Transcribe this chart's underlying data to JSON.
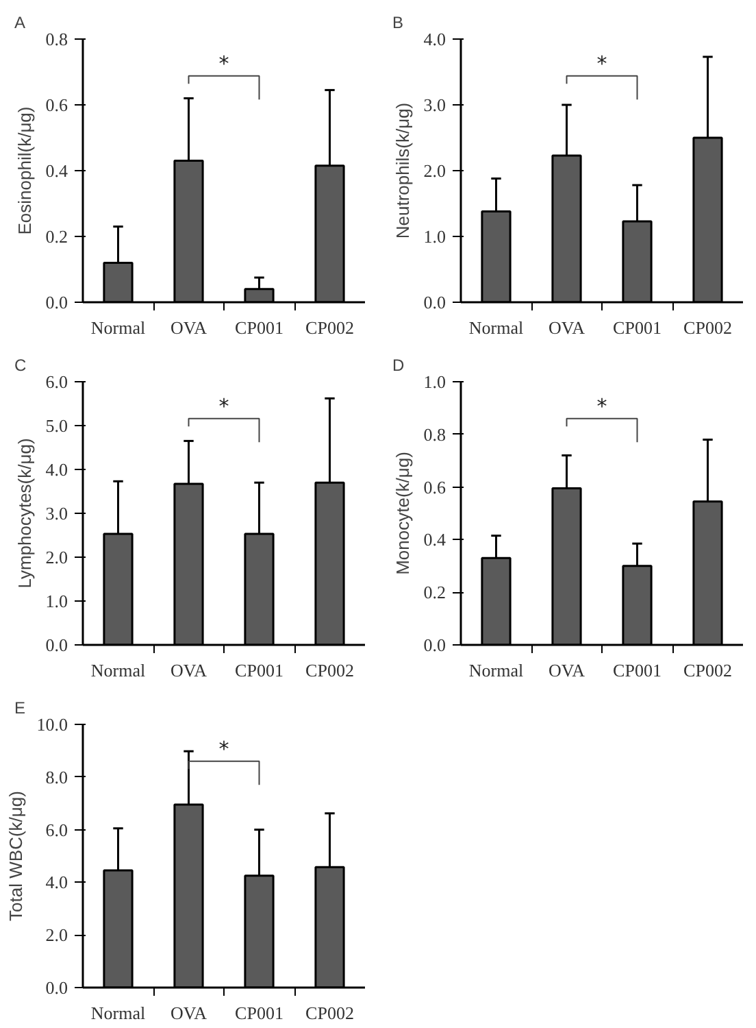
{
  "chart_data": [
    {
      "type": "bar",
      "title": "A",
      "ylabel": "Eosinophil(k/μg)",
      "categories": [
        "Normal",
        "OVA",
        "CP001",
        "CP002"
      ],
      "values": [
        0.12,
        0.43,
        0.04,
        0.415
      ],
      "errors": [
        [
          0.12,
          0.23
        ],
        [
          0.43,
          0.62
        ],
        [
          0.04,
          0.075
        ],
        [
          0.415,
          0.645
        ]
      ],
      "color": "#5a5a5a",
      "ylim": [
        0,
        0.8
      ],
      "yticks": [
        {
          "value": 0,
          "label": "0.0"
        },
        0.2,
        0.4,
        0.6,
        0.8
      ],
      "annotations": [
        "*"
      ],
      "grid": false
    },
    {
      "type": "bar",
      "title": "B",
      "ylabel": "Neutrophils(k/μg)",
      "categories": [
        "Normal",
        "OVA",
        "CP001",
        "CP002"
      ],
      "values": [
        1.38,
        2.23,
        1.23,
        2.5
      ],
      "errors": [
        [
          1.38,
          1.88
        ],
        [
          2.23,
          3.0
        ],
        [
          1.23,
          1.78
        ],
        [
          2.5,
          3.73
        ]
      ],
      "color": "#5a5a5a",
      "ylim": [
        0,
        4
      ],
      "yticks": [
        {
          "value": 0,
          "label": "0.0"
        },
        {
          "value": 1,
          "label": "1.0"
        },
        {
          "value": 2,
          "label": "2.0"
        },
        {
          "value": 3,
          "label": "3.0"
        },
        {
          "value": 4,
          "label": "4.0"
        }
      ],
      "annotations": [
        "*"
      ],
      "grid": false
    },
    {
      "type": "bar",
      "title": "C",
      "ylabel": "Lymphocytes(k/μg)",
      "categories": [
        "Normal",
        "OVA",
        "CP001",
        "CP002"
      ],
      "values": [
        2.53,
        3.67,
        2.53,
        3.7
      ],
      "errors": [
        [
          2.53,
          3.73
        ],
        [
          3.67,
          4.65
        ],
        [
          2.53,
          3.7
        ],
        [
          3.7,
          5.62
        ]
      ],
      "color": "#5a5a5a",
      "ylim": [
        0,
        6
      ],
      "yticks": [
        {
          "value": 0,
          "label": "0.0"
        },
        {
          "value": 1,
          "label": "1.0"
        },
        {
          "value": 2,
          "label": "2.0"
        },
        {
          "value": 3,
          "label": "3.0"
        },
        {
          "value": 4,
          "label": "4.0"
        },
        {
          "value": 5,
          "label": "5.0"
        },
        {
          "value": 6,
          "label": "6.0"
        }
      ],
      "annotations": [
        "*"
      ],
      "grid": false
    },
    {
      "type": "bar",
      "title": "D",
      "ylabel": "Monocyte(k/μg)",
      "categories": [
        "Normal",
        "OVA",
        "CP001",
        "CP002"
      ],
      "values": [
        0.33,
        0.595,
        0.3,
        0.545
      ],
      "errors": [
        [
          0.33,
          0.415
        ],
        [
          0.595,
          0.72
        ],
        [
          0.3,
          0.385
        ],
        [
          0.545,
          0.78
        ]
      ],
      "color": "#5a5a5a",
      "ylim": [
        0,
        1
      ],
      "yticks": [
        {
          "value": 0,
          "label": "0.0"
        },
        0.2,
        0.4,
        0.6,
        0.8,
        {
          "value": 1,
          "label": "1.0"
        }
      ],
      "annotations": [
        "*"
      ],
      "grid": false
    },
    {
      "type": "bar",
      "title": "E",
      "ylabel": "Total WBC(k/μg)",
      "categories": [
        "Normal",
        "OVA",
        "CP001",
        "CP002"
      ],
      "values": [
        4.45,
        6.95,
        4.25,
        4.58
      ],
      "errors": [
        [
          4.45,
          6.05
        ],
        [
          6.95,
          8.98
        ],
        [
          4.25,
          6.0
        ],
        [
          4.58,
          6.62
        ]
      ],
      "color": "#5a5a5a",
      "ylim": [
        0,
        10
      ],
      "yticks": [
        {
          "value": 0,
          "label": "0.0"
        },
        {
          "value": 2,
          "label": "2.0"
        },
        {
          "value": 4,
          "label": "4.0"
        },
        {
          "value": 6,
          "label": "6.0"
        },
        {
          "value": 8,
          "label": "8.0"
        },
        {
          "value": 10,
          "label": "10.0"
        }
      ],
      "annotations": [
        "*"
      ],
      "grid": false
    }
  ]
}
